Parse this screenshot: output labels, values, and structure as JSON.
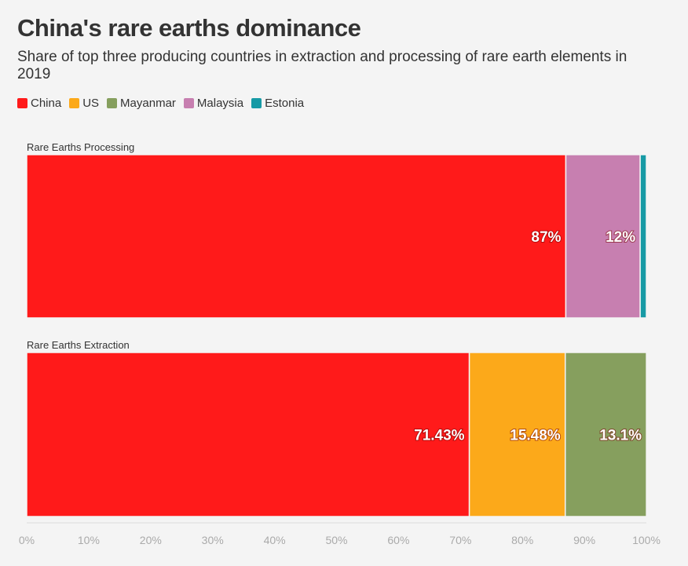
{
  "title": "China's rare earths dominance",
  "subtitle": "Share of top three producing countries in extraction and processing of rare earth elements in 2019",
  "legend": [
    {
      "name": "China",
      "color": "#ff1a1a"
    },
    {
      "name": "US",
      "color": "#fca91a"
    },
    {
      "name": "Mayanmar",
      "color": "#869f5e"
    },
    {
      "name": "Malaysia",
      "color": "#c77fb0"
    },
    {
      "name": "Estonia",
      "color": "#179aa5"
    }
  ],
  "chart_data": {
    "type": "bar",
    "orientation": "horizontal",
    "stacked": true,
    "categories": [
      "Rare Earths Processing",
      "Rare Earths Extraction"
    ],
    "series": [
      {
        "name": "China",
        "values": [
          87,
          71.43
        ],
        "labels": [
          "87%",
          "71.43%"
        ]
      },
      {
        "name": "US",
        "values": [
          0,
          15.48
        ],
        "labels": [
          "",
          "15.48%"
        ]
      },
      {
        "name": "Mayanmar",
        "values": [
          0,
          13.1
        ],
        "labels": [
          "",
          "13.1%"
        ]
      },
      {
        "name": "Malaysia",
        "values": [
          12,
          0
        ],
        "labels": [
          "12%",
          ""
        ]
      },
      {
        "name": "Estonia",
        "values": [
          1,
          0
        ],
        "labels": [
          "",
          ""
        ]
      }
    ],
    "xlim": [
      0,
      100
    ],
    "xticks": [
      "0%",
      "10%",
      "20%",
      "30%",
      "40%",
      "50%",
      "60%",
      "70%",
      "80%",
      "90%",
      "100%"
    ],
    "grid": false
  }
}
